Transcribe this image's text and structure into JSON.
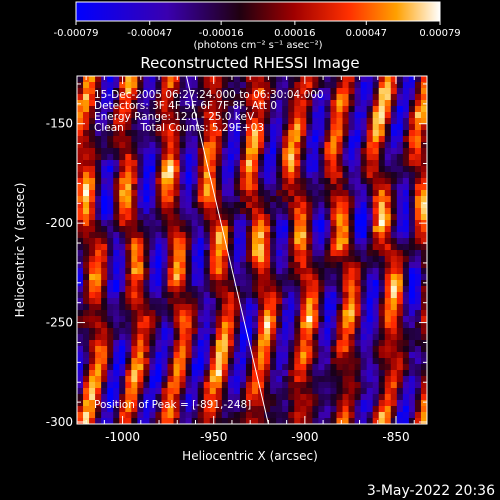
{
  "chart_data": {
    "type": "heatmap",
    "title": "Reconstructed RHESSI Image",
    "xlabel": "Heliocentric X (arcsec)",
    "ylabel": "Heliocentric Y (arcsec)",
    "xlim": [
      -1025,
      -833
    ],
    "ylim": [
      -301,
      -126
    ],
    "xticks": [
      -1000,
      -950,
      -900,
      -850
    ],
    "yticks": [
      -150,
      -200,
      -250,
      -300
    ],
    "colorbar": {
      "tick_values": [
        -0.00079,
        -0.00047,
        -0.00016,
        0.00016,
        0.00047,
        0.00079
      ],
      "tick_labels": [
        "-0.00079",
        "-0.00047",
        "-0.00016",
        "0.00016",
        "0.00047",
        "0.00079"
      ],
      "units": "(photons cm⁻² s⁻¹ asec⁻²)"
    },
    "annotations": [
      "15-Dec-2005 06:27:24.000 to 06:30:04.000",
      "Detectors: 3F 4F 5F 6F 7F 8F, Att 0",
      "Energy Range: 12.0 - 25.0 keV",
      "Clean     Total Counts: 5.29E+03",
      "Position of Peak = [-891,-248]"
    ],
    "peak": {
      "x": -891,
      "y": -248
    },
    "limb_line": [
      [
        -965,
        -126
      ],
      [
        -920,
        -301
      ]
    ],
    "grid": false
  },
  "footer": {
    "date": "3-May-2022 20:36"
  }
}
